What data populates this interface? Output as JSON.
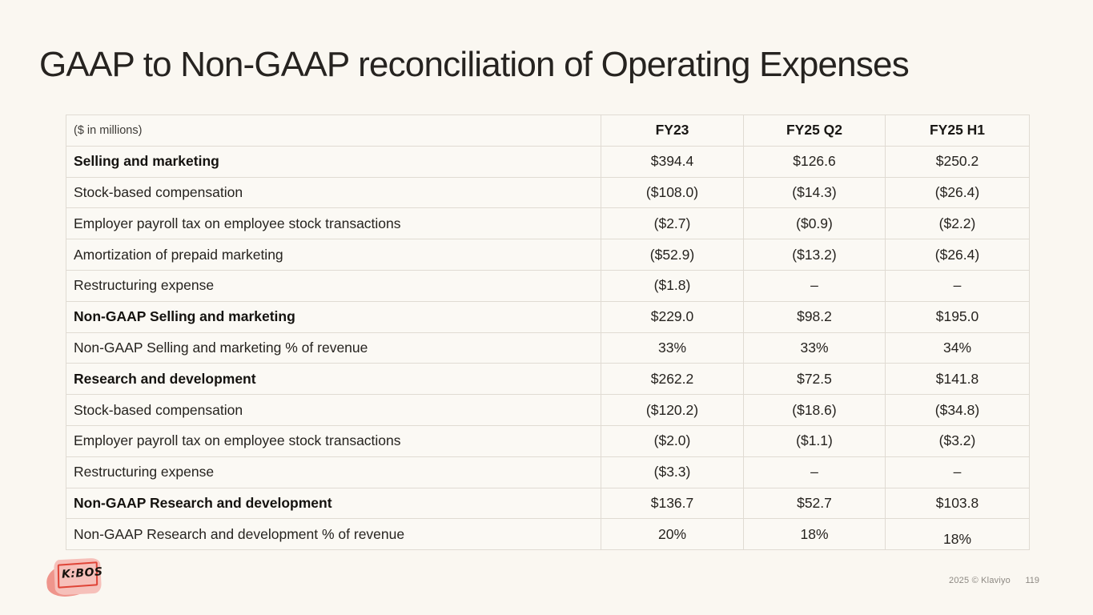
{
  "slide": {
    "title": "GAAP to Non-GAAP reconciliation of Operating Expenses",
    "footer": {
      "copyright": "2025 © Klaviyo",
      "page_number": "119",
      "logo_text": "K:BOS"
    }
  },
  "table": {
    "unit_label": "($ in millions)",
    "columns": [
      "FY23",
      "FY25 Q2",
      "FY25 H1"
    ],
    "rows": [
      {
        "label": "Selling and marketing",
        "bold": true,
        "values": [
          "$394.4",
          "$126.6",
          "$250.2"
        ]
      },
      {
        "label": "Stock-based compensation",
        "bold": false,
        "values": [
          "($108.0)",
          "($14.3)",
          "($26.4)"
        ]
      },
      {
        "label": "Employer payroll tax on employee stock transactions",
        "bold": false,
        "values": [
          "($2.7)",
          "($0.9)",
          "($2.2)"
        ]
      },
      {
        "label": "Amortization of prepaid marketing",
        "bold": false,
        "values": [
          "($52.9)",
          "($13.2)",
          "($26.4)"
        ]
      },
      {
        "label": "Restructuring expense",
        "bold": false,
        "values": [
          "($1.8)",
          "–",
          "–"
        ]
      },
      {
        "label": "Non-GAAP Selling and marketing",
        "bold": true,
        "values": [
          "$229.0",
          "$98.2",
          "$195.0"
        ]
      },
      {
        "label": "Non-GAAP Selling and marketing % of revenue",
        "bold": false,
        "values": [
          "33%",
          "33%",
          "34%"
        ]
      },
      {
        "label": "Research and development",
        "bold": true,
        "values": [
          "$262.2",
          "$72.5",
          "$141.8"
        ]
      },
      {
        "label": "Stock-based compensation",
        "bold": false,
        "values": [
          "($120.2)",
          "($18.6)",
          "($34.8)"
        ]
      },
      {
        "label": "Employer payroll tax on employee stock transactions",
        "bold": false,
        "values": [
          "($2.0)",
          "($1.1)",
          "($3.2)"
        ]
      },
      {
        "label": "Restructuring expense",
        "bold": false,
        "values": [
          "($3.3)",
          "–",
          "–"
        ]
      },
      {
        "label": "Non-GAAP Research and development",
        "bold": true,
        "values": [
          "$136.7",
          "$52.7",
          "$103.8"
        ]
      },
      {
        "label": "Non-GAAP Research and development % of revenue",
        "bold": false,
        "values": [
          "20%",
          "18%",
          "18%"
        ]
      }
    ]
  },
  "colors": {
    "background": "#FAF7F1",
    "cell_background": "#FBF9F4",
    "border": "#E0DBD3",
    "text": "#26231F",
    "footer_text": "#8D8983",
    "logo_pink": "#EF958C",
    "logo_light_pink": "#F6C0BA",
    "logo_red": "#DF4437"
  }
}
